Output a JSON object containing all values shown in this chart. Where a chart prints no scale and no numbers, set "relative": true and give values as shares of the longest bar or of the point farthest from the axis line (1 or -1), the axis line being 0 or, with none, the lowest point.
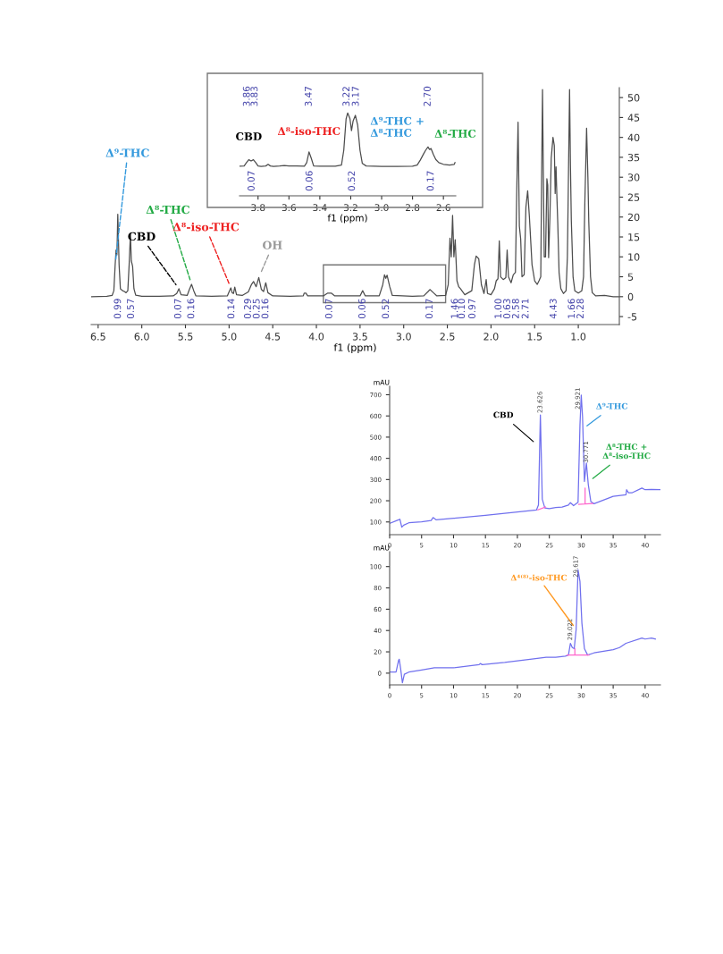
{
  "chart_data": [
    {
      "type": "line",
      "xlabel": "f1 (ppm)",
      "x": [
        6.58,
        6.4,
        6.34,
        6.32,
        6.305,
        6.295,
        6.285,
        6.275,
        6.26,
        6.245,
        6.22,
        6.2,
        6.18,
        6.16,
        6.145,
        6.13,
        6.12,
        6.105,
        6.09,
        6.07,
        6.0,
        5.8,
        5.64,
        5.6,
        5.575,
        5.55,
        5.48,
        5.455,
        5.43,
        5.405,
        5.38,
        5.2,
        5.02,
        4.995,
        4.98,
        4.965,
        4.95,
        4.935,
        4.915,
        4.85,
        4.78,
        4.745,
        4.72,
        4.69,
        4.66,
        4.63,
        4.605,
        4.58,
        4.555,
        4.5,
        4.3,
        4.15,
        4.14,
        4.12,
        4.1,
        3.92,
        3.87,
        3.83,
        3.79,
        3.6,
        3.5,
        3.47,
        3.44,
        3.28,
        3.24,
        3.22,
        3.205,
        3.19,
        3.16,
        3.13,
        2.9,
        2.77,
        2.72,
        2.7,
        2.66,
        2.62,
        2.52,
        2.49,
        2.47,
        2.455,
        2.44,
        2.425,
        2.41,
        2.39,
        2.37,
        2.35,
        2.3,
        2.22,
        2.19,
        2.17,
        2.14,
        2.11,
        2.08,
        2.055,
        2.04,
        2.0,
        1.96,
        1.94,
        1.92,
        1.905,
        1.89,
        1.86,
        1.83,
        1.815,
        1.8,
        1.77,
        1.745,
        1.72,
        1.705,
        1.69,
        1.675,
        1.66,
        1.645,
        1.62,
        1.6,
        1.58,
        1.56,
        1.53,
        1.5,
        1.47,
        1.45,
        1.43,
        1.42,
        1.41,
        1.4,
        1.39,
        1.375,
        1.36,
        1.35,
        1.34,
        1.325,
        1.31,
        1.29,
        1.275,
        1.265,
        1.255,
        1.245,
        1.235,
        1.22,
        1.2,
        1.17,
        1.14,
        1.125,
        1.115,
        1.1,
        1.09,
        1.08,
        1.06,
        1.04,
        1.0,
        0.96,
        0.94,
        0.925,
        0.905,
        0.89,
        0.88,
        0.86,
        0.84,
        0.8,
        0.7,
        0.6,
        0.53
      ],
      "series": [
        {
          "color": "#4d4d4d",
          "values": [
            0,
            0.1,
            0.3,
            1.5,
            8,
            11.7,
            10.5,
            20.7,
            8,
            2,
            1.5,
            1.3,
            1.0,
            1.5,
            8,
            15.8,
            9,
            7.6,
            2,
            0.4,
            0.1,
            0.1,
            0.2,
            0.8,
            2.0,
            0.5,
            0.3,
            1.8,
            3.1,
            1.5,
            0.2,
            0.1,
            0.2,
            1.5,
            2.2,
            1.0,
            0.8,
            2.4,
            0.5,
            0.3,
            1.2,
            3.0,
            3.8,
            2.5,
            4.8,
            1.8,
            1.3,
            3.5,
            1.0,
            0.2,
            0.1,
            0.2,
            0.9,
            0.9,
            0.2,
            0.2,
            0.9,
            0.9,
            0.2,
            0.2,
            0.2,
            1.5,
            0.2,
            0.2,
            3,
            5.5,
            4.6,
            5.4,
            2.5,
            0.3,
            0.1,
            0.2,
            1.3,
            1.8,
            1.0,
            0.2,
            0.3,
            3,
            14.7,
            10,
            20.4,
            10,
            14.3,
            4,
            2.5,
            2.0,
            0.5,
            1.5,
            8,
            10.2,
            9.5,
            3,
            0.8,
            4.3,
            0.8,
            0.5,
            2,
            4,
            4.5,
            14.0,
            5,
            4.3,
            4.8,
            11.7,
            5,
            3.5,
            5.5,
            6.1,
            26.6,
            43.8,
            17.7,
            14.5,
            5,
            5.5,
            22.5,
            26.6,
            20,
            8,
            4,
            3.1,
            4,
            5,
            30,
            52,
            30,
            10,
            10,
            29.6,
            28,
            9.8,
            20,
            34.8,
            40,
            38,
            25.9,
            32.6,
            25,
            18.4,
            6,
            2,
            0.8,
            1.5,
            10,
            26.6,
            52,
            33,
            19.2,
            5,
            1.5,
            0.9,
            1.5,
            5,
            23.7,
            42.3,
            30,
            18.8,
            5,
            1,
            0.2,
            0.3,
            0,
            0
          ]
        }
      ],
      "xlim": [
        6.58,
        0.53
      ],
      "ylim": [
        -7,
        52.5
      ],
      "xticks": [
        6.5,
        {
          "value": 6,
          "label": "6.0"
        },
        5.5,
        {
          "value": 5,
          "label": "5.0"
        },
        4.5,
        {
          "value": 4,
          "label": "4.0"
        },
        3.5,
        {
          "value": 3,
          "label": "3.0"
        },
        2.5,
        {
          "value": 2,
          "label": "2.0"
        },
        1.5,
        {
          "value": 1,
          "label": "1.0"
        }
      ],
      "yticks": [
        -5,
        0,
        5,
        10,
        15,
        20,
        25,
        30,
        35,
        40,
        45,
        50
      ],
      "annotations": [
        {
          "text": "Δ⁹-THC",
          "x": 6.305,
          "y": 8
        },
        {
          "text": "CBD",
          "x": 5.575,
          "y": 2.0
        },
        {
          "text": "Δ⁸-THC",
          "x": 5.43,
          "y": 3.1
        },
        {
          "text": "Δ⁸-iso-THC",
          "x": 4.98,
          "y": 2.2
        },
        {
          "text": "OH",
          "x": 4.66,
          "y": 4.8
        },
        "0.99",
        "0.57",
        "0.07",
        "0.16",
        "0.14",
        "0.29",
        "0.25",
        "0.16",
        "0.07",
        "0.06",
        "0.52",
        "0.17",
        "1.46",
        "0.10",
        "0.97",
        "1.00",
        "0.63",
        "2.58",
        "2.71",
        "4.43",
        "1.66",
        "2.28"
      ]
    },
    {
      "type": "line",
      "xlabel": "f1 (ppm)",
      "relative": true,
      "x": [
        3.92,
        3.89,
        3.875,
        3.86,
        3.845,
        3.83,
        3.815,
        3.8,
        3.78,
        3.75,
        3.735,
        3.72,
        3.7,
        3.66,
        3.63,
        3.6,
        3.55,
        3.5,
        3.485,
        3.47,
        3.455,
        3.44,
        3.4,
        3.3,
        3.26,
        3.245,
        3.23,
        3.22,
        3.205,
        3.195,
        3.185,
        3.17,
        3.155,
        3.14,
        3.125,
        3.1,
        3.0,
        2.9,
        2.8,
        2.77,
        2.75,
        2.73,
        2.715,
        2.7,
        2.69,
        2.68,
        2.665,
        2.65,
        2.63,
        2.6,
        2.56,
        2.53,
        2.525
      ],
      "series": [
        {
          "color": "#4d4d4d",
          "values": [
            0.357,
            0.36,
            0.4,
            0.436,
            0.42,
            0.436,
            0.4,
            0.36,
            0.355,
            0.36,
            0.38,
            0.36,
            0.355,
            0.36,
            0.365,
            0.36,
            0.36,
            0.357,
            0.4,
            0.53,
            0.45,
            0.36,
            0.357,
            0.357,
            0.37,
            0.55,
            0.93,
            1.0,
            0.93,
            0.786,
            0.9,
            0.971,
            0.85,
            0.55,
            0.39,
            0.36,
            0.355,
            0.355,
            0.357,
            0.37,
            0.43,
            0.5,
            0.55,
            0.59,
            0.56,
            0.57,
            0.5,
            0.44,
            0.4,
            0.38,
            0.37,
            0.38,
            0.4
          ]
        }
      ],
      "xlim": [
        3.92,
        2.52
      ],
      "xticks": [
        3.8,
        3.6,
        3.4,
        3.2,
        {
          "value": 3,
          "label": "3.0"
        },
        2.8,
        2.6
      ],
      "annotations": [
        {
          "text": "CBD",
          "x": 3.86,
          "y": 0.436
        },
        {
          "text": "Δ⁸-iso-THC",
          "x": 3.47,
          "y": 0.53
        },
        {
          "text": "Δ⁹-THC +\nΔ⁸-THC",
          "x": 3.17,
          "y": 0.971
        },
        {
          "text": "Δ⁸-THC",
          "x": 2.7,
          "y": 0.59
        },
        "3.86",
        "3.83",
        "3.47",
        "3.22",
        "3.17",
        "2.70",
        "0.07",
        "0.06",
        "0.52",
        "0.17"
      ]
    },
    {
      "type": "line",
      "ylabel": "mAU",
      "x": [
        0,
        1.4,
        1.6,
        1.9,
        2.2,
        3,
        5,
        6.5,
        6.8,
        7.3,
        10,
        15,
        20,
        23,
        23.3,
        23.6,
        23.9,
        24.3,
        25,
        26,
        27,
        28,
        28.3,
        28.8,
        29.5,
        29.8,
        30.0,
        30.2,
        30.5,
        30.8,
        31.1,
        31.5,
        32,
        35,
        37,
        37.1,
        37.4,
        38,
        39.5,
        40,
        41,
        42.4
      ],
      "series": [
        {
          "color": "#7070ee",
          "values": [
            93,
            110,
            113,
            75,
            85,
            96,
            101,
            107,
            121,
            110,
            117,
            131,
            147,
            157,
            180,
            605,
            207,
            166,
            163,
            168,
            170,
            180,
            191,
            177,
            193,
            556,
            698,
            598,
            291,
            378,
            277,
            196,
            186,
            221,
            228,
            252,
            238,
            238,
            260,
            252,
            253,
            252
          ]
        },
        {
          "color": "#ff66cc",
          "x": [
            23.2,
            24.4
          ],
          "values": [
            157,
            170
          ]
        },
        {
          "color": "#ff66cc",
          "x": [
            29.6,
            30.6,
            30.6,
            30.6,
            31.8
          ],
          "values": [
            183,
            185,
            260,
            185,
            187
          ]
        }
      ],
      "xlim": [
        0,
        42.4
      ],
      "ylim": [
        40,
        740
      ],
      "xticks": [
        0,
        5,
        10,
        15,
        20,
        25,
        30,
        35,
        40
      ],
      "yticks": [
        100,
        200,
        300,
        400,
        500,
        600,
        700
      ],
      "annotations": [
        "CBD",
        "Δ⁹-THC",
        "Δ⁸-THC +\nΔ⁸-iso-THC",
        "23.626",
        "29.921",
        "30.771"
      ]
    },
    {
      "type": "line",
      "ylabel": "mAU",
      "x": [
        0,
        1.0,
        1.4,
        1.5,
        1.7,
        2.0,
        2.3,
        3,
        5,
        7,
        10,
        14,
        14.2,
        14.5,
        18,
        22,
        24.5,
        26,
        27.5,
        28,
        28.3,
        28.6,
        28.9,
        29.2,
        29.5,
        29.8,
        30.1,
        30.5,
        31,
        32,
        35,
        36,
        37,
        39.5,
        40,
        41,
        41.6
      ],
      "series": [
        {
          "color": "#7070ee",
          "values": [
            1,
            1,
            12,
            13,
            5,
            -9,
            -1,
            1,
            3,
            5,
            5,
            8,
            9,
            8,
            10,
            13,
            15,
            15,
            16,
            17,
            28,
            24,
            23,
            41,
            97,
            86,
            47,
            23,
            17,
            19,
            22,
            24,
            28,
            33,
            32,
            33,
            32
          ]
        },
        {
          "color": "#ff66cc",
          "x": [
            27.8,
            29.0,
            29.0,
            29.0,
            31.2
          ],
          "values": [
            17,
            17,
            23,
            17,
            17
          ]
        }
      ],
      "xlim": [
        0,
        42.4
      ],
      "ylim": [
        -11,
        114
      ],
      "xticks": [
        0,
        5,
        10,
        15,
        20,
        25,
        30,
        35,
        40
      ],
      "yticks": [
        0,
        20,
        40,
        60,
        80,
        100
      ],
      "annotations": [
        {
          "text": "Δ⁴⁽⁸⁾-iso-THC",
          "x": 29.2,
          "y": 41
        },
        "29.617",
        "29.021"
      ]
    }
  ]
}
